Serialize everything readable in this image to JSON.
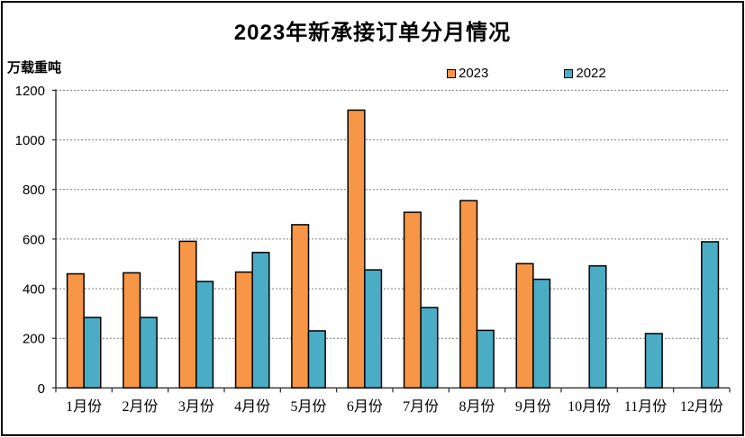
{
  "chart_data": {
    "type": "bar",
    "title": "2023年新承接订单分月情况",
    "ylabel": "万载重吨",
    "xlabel": "",
    "categories": [
      "1月份",
      "2月份",
      "3月份",
      "4月份",
      "5月份",
      "6月份",
      "7月份",
      "8月份",
      "9月份",
      "10月份",
      "11月份",
      "12月份"
    ],
    "series": [
      {
        "name": "2023",
        "color": "#F79646",
        "values": [
          460,
          464,
          591,
          467,
          658,
          1120,
          708,
          755,
          501,
          null,
          null,
          null
        ]
      },
      {
        "name": "2022",
        "color": "#4BACC6",
        "values": [
          284,
          284,
          429,
          546,
          230,
          476,
          324,
          232,
          438,
          492,
          219,
          589
        ]
      }
    ],
    "ylim": [
      0,
      1200
    ],
    "yticks": [
      0,
      200,
      400,
      600,
      800,
      1000,
      1200
    ],
    "grid": "horizontal dashed",
    "legend_position": "top",
    "colors": {
      "axis": "#2b2b2b",
      "gridline": "#7f7f7f",
      "bar_border": "#000000",
      "text": "#000000",
      "background": "#ffffff",
      "outer_border": "#000000"
    }
  }
}
